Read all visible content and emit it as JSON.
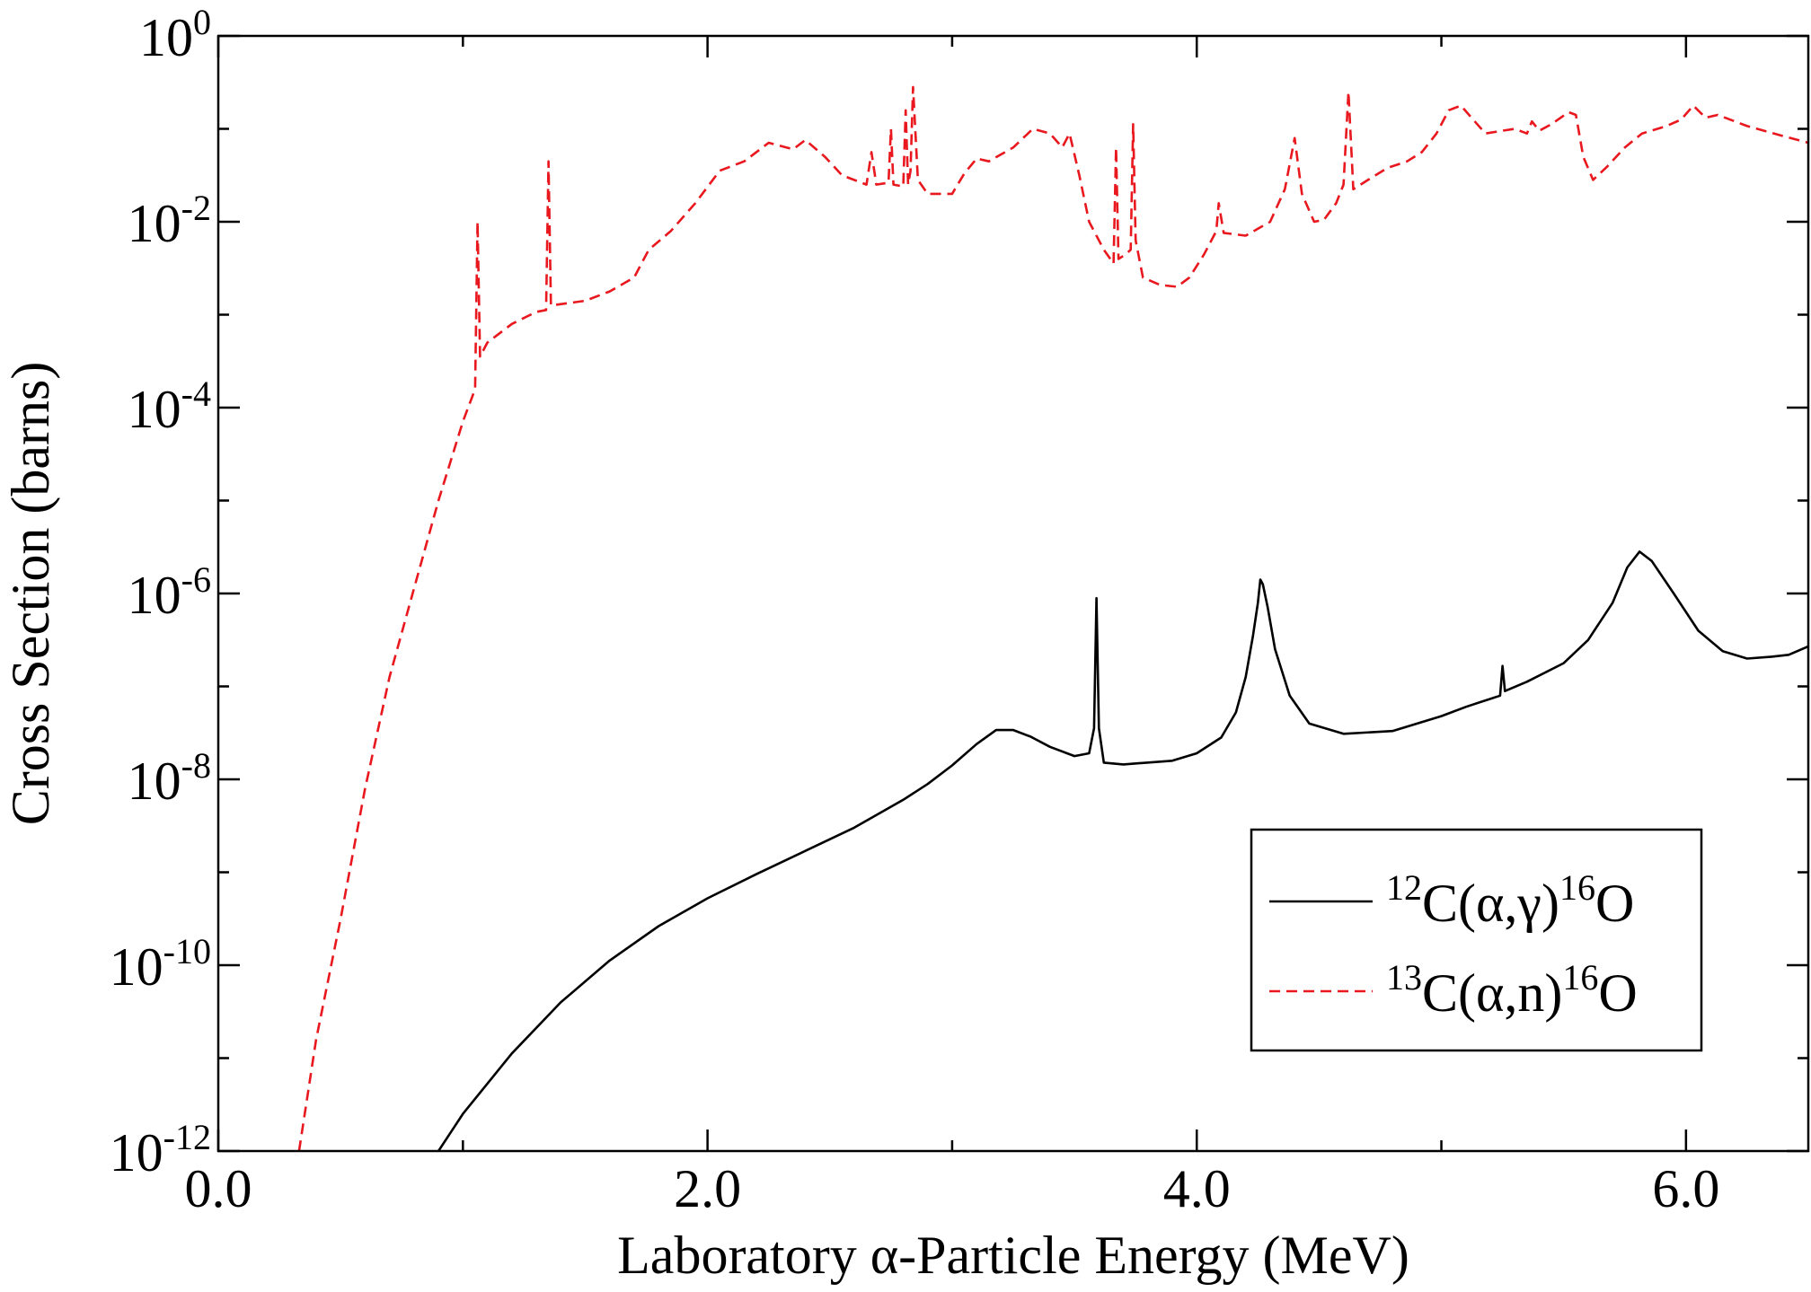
{
  "chart_data": {
    "type": "line",
    "title": "",
    "xlabel": "Laboratory α-Particle Energy (MeV)",
    "ylabel": "Cross Section (barns)",
    "xlim": [
      0,
      6.5
    ],
    "ylim_exponent": [
      -12,
      0
    ],
    "yscale": "log",
    "grid": false,
    "legend_position": "lower-right",
    "x_major_ticks": [
      0,
      2,
      4,
      6
    ],
    "x_minor_ticks": [
      1,
      3,
      5
    ],
    "x_tick_labels": [
      "0.0",
      "2.0",
      "4.0",
      "6.0"
    ],
    "y_tick_base": "10",
    "y_tick_exponents": [
      "0",
      "-2",
      "-4",
      "-6",
      "-8",
      "-10",
      "-12"
    ],
    "y_minor_tick_exponents": [
      -1,
      -3,
      -5,
      -7,
      -9,
      -11
    ],
    "series": [
      {
        "name": "12C(α,γ)16O",
        "legend": {
          "pre_sup": "12",
          "main": "C(α,γ)",
          "post_sup": "16",
          "tail": "O"
        },
        "color": "#000000",
        "dash": "solid",
        "points": [
          [
            0.9,
            -12.0
          ],
          [
            1.0,
            -11.6
          ],
          [
            1.2,
            -10.95
          ],
          [
            1.4,
            -10.4
          ],
          [
            1.6,
            -9.95
          ],
          [
            1.8,
            -9.58
          ],
          [
            2.0,
            -9.28
          ],
          [
            2.2,
            -9.02
          ],
          [
            2.4,
            -8.77
          ],
          [
            2.6,
            -8.52
          ],
          [
            2.8,
            -8.22
          ],
          [
            2.9,
            -8.05
          ],
          [
            3.0,
            -7.85
          ],
          [
            3.1,
            -7.62
          ],
          [
            3.18,
            -7.47
          ],
          [
            3.25,
            -7.47
          ],
          [
            3.32,
            -7.54
          ],
          [
            3.4,
            -7.65
          ],
          [
            3.5,
            -7.75
          ],
          [
            3.56,
            -7.72
          ],
          [
            3.58,
            -7.45
          ],
          [
            3.59,
            -6.05
          ],
          [
            3.6,
            -7.45
          ],
          [
            3.62,
            -7.82
          ],
          [
            3.7,
            -7.84
          ],
          [
            3.9,
            -7.8
          ],
          [
            4.0,
            -7.72
          ],
          [
            4.1,
            -7.55
          ],
          [
            4.16,
            -7.28
          ],
          [
            4.2,
            -6.9
          ],
          [
            4.23,
            -6.45
          ],
          [
            4.25,
            -6.1
          ],
          [
            4.26,
            -5.85
          ],
          [
            4.27,
            -5.9
          ],
          [
            4.29,
            -6.15
          ],
          [
            4.32,
            -6.6
          ],
          [
            4.38,
            -7.1
          ],
          [
            4.46,
            -7.4
          ],
          [
            4.6,
            -7.51
          ],
          [
            4.8,
            -7.48
          ],
          [
            5.0,
            -7.32
          ],
          [
            5.1,
            -7.22
          ],
          [
            5.24,
            -7.1
          ],
          [
            5.25,
            -6.78
          ],
          [
            5.26,
            -7.05
          ],
          [
            5.35,
            -6.95
          ],
          [
            5.5,
            -6.75
          ],
          [
            5.6,
            -6.5
          ],
          [
            5.7,
            -6.1
          ],
          [
            5.76,
            -5.72
          ],
          [
            5.81,
            -5.55
          ],
          [
            5.86,
            -5.65
          ],
          [
            5.95,
            -6.0
          ],
          [
            6.05,
            -6.4
          ],
          [
            6.15,
            -6.62
          ],
          [
            6.25,
            -6.7
          ],
          [
            6.35,
            -6.68
          ],
          [
            6.42,
            -6.66
          ],
          [
            6.5,
            -6.57
          ]
        ]
      },
      {
        "name": "13C(α,n)16O",
        "legend": {
          "pre_sup": "13",
          "main": "C(α,n)",
          "post_sup": "16",
          "tail": "O"
        },
        "color": "#e8181e",
        "dash": "dashed",
        "points": [
          [
            0.33,
            -12.0
          ],
          [
            0.4,
            -10.8
          ],
          [
            0.5,
            -9.5
          ],
          [
            0.6,
            -8.1
          ],
          [
            0.7,
            -6.9
          ],
          [
            0.8,
            -5.95
          ],
          [
            0.9,
            -5.0
          ],
          [
            1.0,
            -4.15
          ],
          [
            1.05,
            -3.8
          ],
          [
            1.06,
            -2.0
          ],
          [
            1.07,
            -3.45
          ],
          [
            1.1,
            -3.3
          ],
          [
            1.2,
            -3.1
          ],
          [
            1.3,
            -2.97
          ],
          [
            1.34,
            -2.95
          ],
          [
            1.35,
            -1.35
          ],
          [
            1.36,
            -2.9
          ],
          [
            1.5,
            -2.85
          ],
          [
            1.6,
            -2.75
          ],
          [
            1.7,
            -2.6
          ],
          [
            1.74,
            -2.4
          ],
          [
            1.76,
            -2.3
          ],
          [
            1.85,
            -2.1
          ],
          [
            1.95,
            -1.8
          ],
          [
            2.05,
            -1.45
          ],
          [
            2.15,
            -1.35
          ],
          [
            2.25,
            -1.15
          ],
          [
            2.35,
            -1.22
          ],
          [
            2.4,
            -1.12
          ],
          [
            2.48,
            -1.3
          ],
          [
            2.55,
            -1.5
          ],
          [
            2.65,
            -1.6
          ],
          [
            2.67,
            -1.25
          ],
          [
            2.69,
            -1.6
          ],
          [
            2.74,
            -1.58
          ],
          [
            2.75,
            -1.0
          ],
          [
            2.76,
            -1.6
          ],
          [
            2.8,
            -1.62
          ],
          [
            2.81,
            -0.8
          ],
          [
            2.82,
            -1.6
          ],
          [
            2.83,
            -1.45
          ],
          [
            2.84,
            -0.55
          ],
          [
            2.86,
            -1.55
          ],
          [
            2.9,
            -1.7
          ],
          [
            3.0,
            -1.7
          ],
          [
            3.05,
            -1.48
          ],
          [
            3.1,
            -1.32
          ],
          [
            3.15,
            -1.35
          ],
          [
            3.25,
            -1.2
          ],
          [
            3.33,
            -1.0
          ],
          [
            3.4,
            -1.05
          ],
          [
            3.45,
            -1.2
          ],
          [
            3.48,
            -1.05
          ],
          [
            3.52,
            -1.5
          ],
          [
            3.56,
            -2.0
          ],
          [
            3.62,
            -2.3
          ],
          [
            3.66,
            -2.45
          ],
          [
            3.67,
            -1.2
          ],
          [
            3.68,
            -2.4
          ],
          [
            3.71,
            -2.35
          ],
          [
            3.73,
            -2.3
          ],
          [
            3.74,
            -0.95
          ],
          [
            3.75,
            -2.2
          ],
          [
            3.78,
            -2.6
          ],
          [
            3.85,
            -2.68
          ],
          [
            3.92,
            -2.7
          ],
          [
            3.97,
            -2.6
          ],
          [
            4.03,
            -2.35
          ],
          [
            4.08,
            -2.1
          ],
          [
            4.09,
            -1.8
          ],
          [
            4.11,
            -2.12
          ],
          [
            4.2,
            -2.15
          ],
          [
            4.3,
            -2.0
          ],
          [
            4.36,
            -1.65
          ],
          [
            4.4,
            -1.1
          ],
          [
            4.43,
            -1.7
          ],
          [
            4.48,
            -2.0
          ],
          [
            4.52,
            -1.98
          ],
          [
            4.57,
            -1.8
          ],
          [
            4.6,
            -1.6
          ],
          [
            4.62,
            -0.6
          ],
          [
            4.64,
            -1.65
          ],
          [
            4.7,
            -1.55
          ],
          [
            4.78,
            -1.42
          ],
          [
            4.86,
            -1.35
          ],
          [
            4.92,
            -1.25
          ],
          [
            4.98,
            -1.05
          ],
          [
            5.03,
            -0.8
          ],
          [
            5.08,
            -0.75
          ],
          [
            5.13,
            -0.9
          ],
          [
            5.18,
            -1.05
          ],
          [
            5.25,
            -1.02
          ],
          [
            5.3,
            -1.0
          ],
          [
            5.35,
            -1.05
          ],
          [
            5.37,
            -0.92
          ],
          [
            5.4,
            -1.02
          ],
          [
            5.45,
            -0.95
          ],
          [
            5.52,
            -0.82
          ],
          [
            5.55,
            -0.85
          ],
          [
            5.58,
            -1.3
          ],
          [
            5.62,
            -1.55
          ],
          [
            5.68,
            -1.4
          ],
          [
            5.75,
            -1.2
          ],
          [
            5.82,
            -1.05
          ],
          [
            5.92,
            -0.97
          ],
          [
            5.98,
            -0.9
          ],
          [
            6.03,
            -0.75
          ],
          [
            6.08,
            -0.88
          ],
          [
            6.13,
            -0.85
          ],
          [
            6.25,
            -0.97
          ],
          [
            6.4,
            -1.08
          ],
          [
            6.5,
            -1.15
          ]
        ]
      }
    ]
  }
}
